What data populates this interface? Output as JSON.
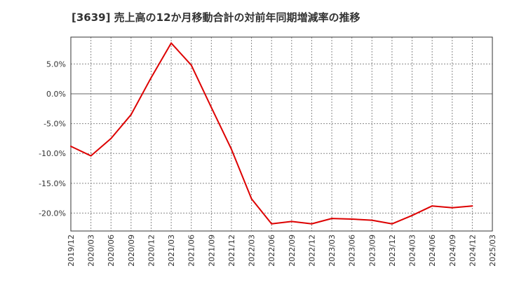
{
  "chart_data": {
    "type": "line",
    "title": "[3639]  売上高の12か月移動合計の対前年同期増減率の推移",
    "xlabel": "",
    "ylabel": "",
    "ylim": [
      -23.0,
      9.5
    ],
    "yticks": [
      5.0,
      0.0,
      -5.0,
      -10.0,
      -15.0,
      -20.0
    ],
    "ytick_labels": [
      "5.0%",
      "0.0%",
      "-5.0%",
      "-10.0%",
      "-15.0%",
      "-20.0%"
    ],
    "x_tick_labels": [
      "2019/12",
      "2020/03",
      "2020/06",
      "2020/09",
      "2020/12",
      "2021/03",
      "2021/06",
      "2021/09",
      "2021/12",
      "2022/03",
      "2022/06",
      "2022/09",
      "2022/12",
      "2023/03",
      "2023/06",
      "2023/09",
      "2023/12",
      "2024/03",
      "2024/06",
      "2024/09",
      "2024/12",
      "2025/03"
    ],
    "grid": true,
    "series": [
      {
        "name": "増減率",
        "color": "#dd0000",
        "values": [
          -8.8,
          -10.4,
          -7.5,
          -3.5,
          2.7,
          8.5,
          4.8,
          -2.3,
          -9.3,
          -17.6,
          -21.8,
          -21.4,
          -21.8,
          -20.9,
          -21.0,
          -21.2,
          -21.8,
          -20.4,
          -18.8,
          -19.1,
          -18.8
        ]
      }
    ]
  }
}
